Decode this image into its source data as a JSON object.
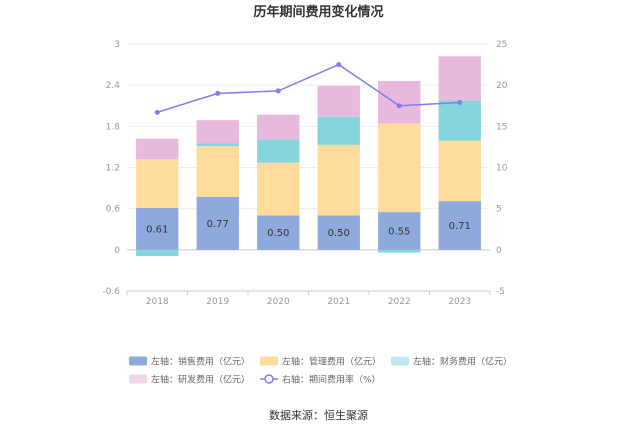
{
  "chart_data": {
    "type": "bar",
    "title": "历年期间费用变化情况",
    "categories": [
      "2018",
      "2019",
      "2020",
      "2021",
      "2022",
      "2023"
    ],
    "y_left": {
      "min": -0.6,
      "max": 3,
      "ticks": [
        "-0.6",
        "0",
        "0.6",
        "1.2",
        "1.8",
        "2.4",
        "3"
      ]
    },
    "y_right": {
      "min": -5,
      "max": 25,
      "ticks": [
        "-5",
        "0",
        "5",
        "10",
        "15",
        "20",
        "25"
      ]
    },
    "stacked": true,
    "series": [
      {
        "name": "左轴：销售费用（亿元）",
        "color": "#8eaadc",
        "values": [
          0.61,
          0.77,
          0.5,
          0.5,
          0.55,
          0.71
        ],
        "labels": [
          "0.61",
          "0.77",
          "0.50",
          "0.50",
          "0.55",
          "0.71"
        ]
      },
      {
        "name": "左轴：管理费用（亿元）",
        "color": "#ffdb9c",
        "values": [
          0.71,
          0.74,
          0.77,
          1.03,
          1.29,
          0.88
        ]
      },
      {
        "name": "左轴：财务费用（亿元）",
        "color": "#87d5dc",
        "values": [
          -0.09,
          0.04,
          0.34,
          0.41,
          -0.04,
          0.59
        ]
      },
      {
        "name": "左轴：研发费用（亿元）",
        "color": "#e8b9dc",
        "values": [
          0.3,
          0.34,
          0.36,
          0.45,
          0.62,
          0.64
        ]
      },
      {
        "name": "右轴：期间费用率（%）",
        "color": "#7b7ff0",
        "type": "line",
        "axis": "right",
        "values": [
          16.7,
          19.0,
          19.3,
          22.5,
          17.5,
          17.9
        ]
      }
    ],
    "grid": true,
    "legend_position": "bottom"
  },
  "footer": {
    "source": "数据来源：恒生聚源"
  }
}
